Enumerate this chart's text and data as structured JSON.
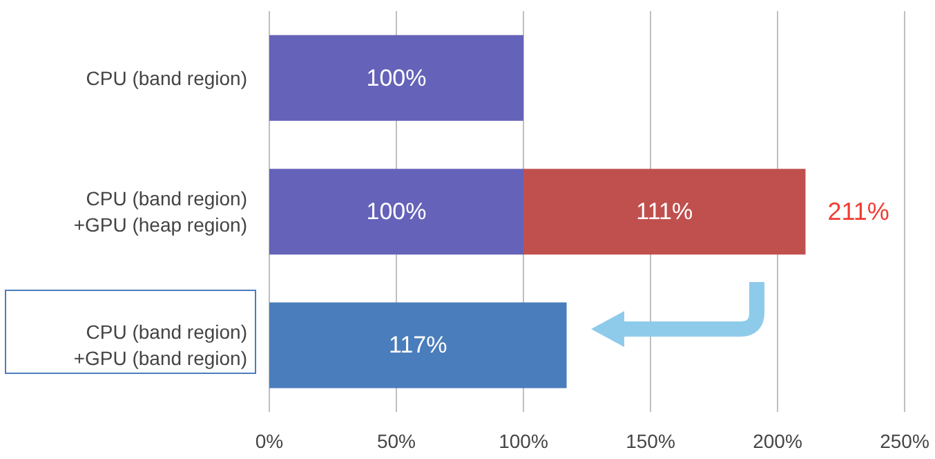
{
  "chart_data": {
    "type": "bar",
    "orientation": "horizontal",
    "stacked": true,
    "categories": [
      "CPU (band region)",
      "CPU (band region)\n+GPU (heap region)",
      "CPU (band region)\n+GPU (band region)"
    ],
    "series": [
      {
        "color": "#6562b9",
        "colors": [
          "#6562b9",
          "#6562b9",
          "#4a7dbb"
        ],
        "values": [
          100,
          100,
          117
        ],
        "value_labels": [
          "100%",
          "100%",
          "117%"
        ]
      },
      {
        "color": "#c0504e",
        "values": [
          null,
          111,
          null
        ],
        "value_labels": [
          null,
          "111%",
          null
        ]
      }
    ],
    "totals": [
      null,
      "211%",
      null
    ],
    "xlim": [
      0,
      250
    ],
    "xticks": [
      {
        "value": 0,
        "label": "0%"
      },
      {
        "value": 50,
        "label": "50%"
      },
      {
        "value": 100,
        "label": "100%"
      },
      {
        "value": 150,
        "label": "150%"
      },
      {
        "value": 200,
        "label": "200%"
      },
      {
        "value": 250,
        "label": "250%"
      }
    ],
    "grid": "x"
  }
}
